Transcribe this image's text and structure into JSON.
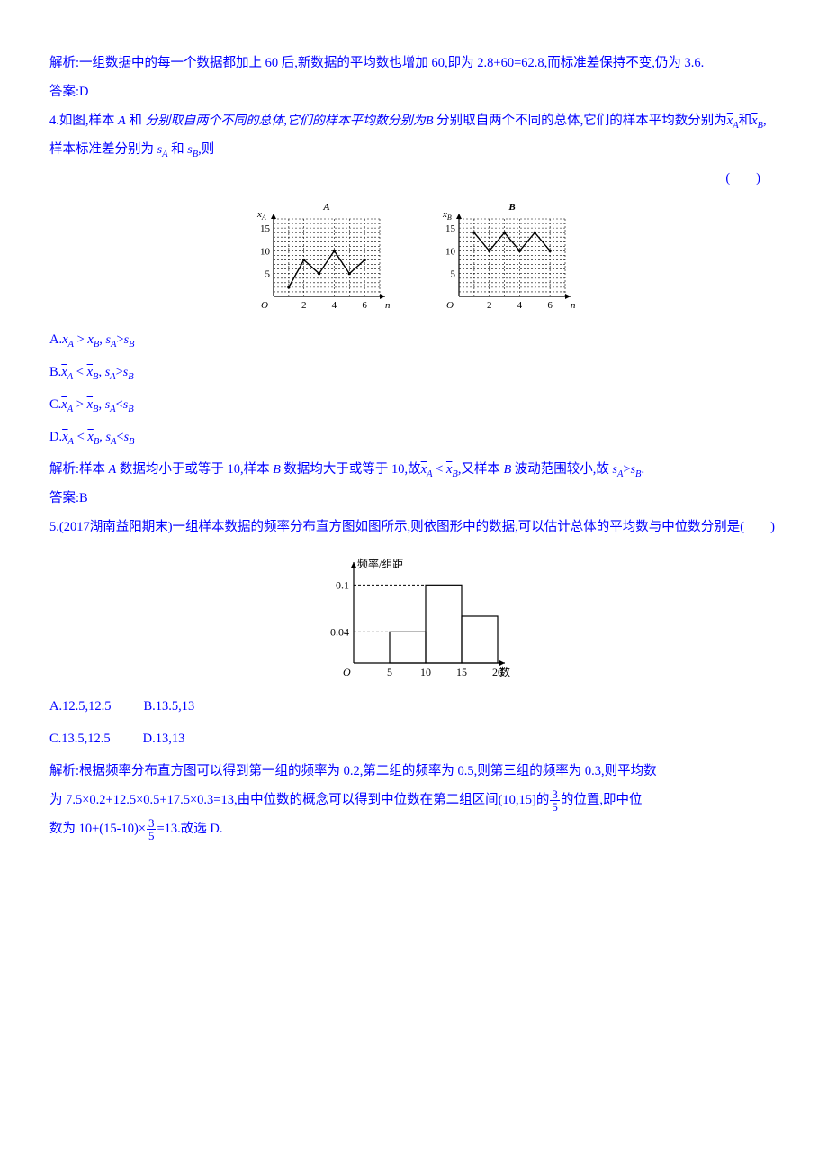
{
  "q3": {
    "analysis": "解析:一组数据中的每一个数据都加上 60 后,新数据的平均数也增加 60,即为 2.8+60=62.8,而标准差保持不变,仍为 3.6.",
    "answer": "答案:D"
  },
  "q4": {
    "stem_pre": "4.如图,样本 ",
    "sampleA": "A",
    "stem_mid1": " 和 ",
    "sampleB": "B",
    "stem_mid2": " 分别取自两个不同的总体,它们的样本平均数分别为",
    "xA": "x",
    "xA_sub": "A",
    "and_word": "和",
    "xB": "x",
    "xB_sub": "B",
    "stem_mid3": ",样本标准差分别为 ",
    "sA": "s",
    "sA_sub": "A",
    "stem_mid4": " 和 ",
    "sB": "s",
    "sB_sub": "B",
    "stem_end": ",则",
    "paren": "(　　)",
    "chartA": {
      "type": "scatter-line",
      "title": "A",
      "x_axis_label": "n",
      "y_axis_label": "xA",
      "x_ticks": [
        2,
        4,
        6
      ],
      "y_ticks": [
        5,
        10,
        15
      ],
      "values_y": [
        2,
        8,
        5,
        10,
        5,
        8
      ],
      "x_max": 7,
      "y_max": 17,
      "grid_color": "#000000",
      "line_color": "#000000",
      "font_size": 11,
      "grid_dashed": true
    },
    "chartB": {
      "type": "scatter-line",
      "title": "B",
      "x_axis_label": "n",
      "y_axis_label": "xB",
      "x_ticks": [
        2,
        4,
        6
      ],
      "y_ticks": [
        5,
        10,
        15
      ],
      "values_y": [
        14,
        10,
        14,
        10,
        14,
        10
      ],
      "x_max": 7,
      "y_max": 17,
      "grid_color": "#000000",
      "line_color": "#000000",
      "font_size": 11,
      "grid_dashed": true
    },
    "options": [
      {
        "label": "A.",
        "rel1": " > ",
        "rel2": ">"
      },
      {
        "label": "B.",
        "rel1": " < ",
        "rel2": ">"
      },
      {
        "label": "C.",
        "rel1": " > ",
        "rel2": "<"
      },
      {
        "label": "D.",
        "rel1": " < ",
        "rel2": "<"
      }
    ],
    "opt_xA": "x",
    "opt_xA_sub": "A",
    "opt_xB": "x",
    "opt_xB_sub": "B",
    "opt_sA": "s",
    "opt_sA_sub": "A",
    "opt_sB": "s",
    "opt_sB_sub": "B",
    "comma": ", ",
    "analysis_pre": "解析:样本 ",
    "analysis_mid1": " 数据均小于或等于 10,样本 ",
    "analysis_mid2": " 数据均大于或等于 10,故",
    "analysis_mid3": ",又样本 ",
    "analysis_mid4": " 波动范围较小,故 ",
    "analysis_end": ".",
    "lt": " < ",
    "gt": ">",
    "answer": "答案:B"
  },
  "q5": {
    "stem": "5.(2017湖南益阳期末)一组样本数据的频率分布直方图如图所示,则依图形中的数据,可以估计总体的平均数与中位数分别是(　　)",
    "histogram": {
      "type": "histogram",
      "x_label": "数",
      "y_label": "频率/组距",
      "x_ticks": [
        5,
        10,
        15,
        20
      ],
      "y_ticks": [
        0.04,
        0.1
      ],
      "y_tick_labels": [
        "0.04",
        "0.1"
      ],
      "bars": [
        {
          "from": 5,
          "to": 10,
          "h": 0.04
        },
        {
          "from": 10,
          "to": 15,
          "h": 0.1
        },
        {
          "from": 15,
          "to": 20,
          "h": 0.06
        }
      ],
      "origin_label": "O",
      "axis_color": "#000000",
      "line_width": 1.2,
      "font_size": 12
    },
    "optA": "A.12.5,12.5",
    "optB": "B.13.5,13",
    "optC": "C.13.5,12.5",
    "optD": "D.13,13",
    "analysis1": "解析:根据频率分布直方图可以得到第一组的频率为 0.2,第二组的频率为 0.5,则第三组的频率为 0.3,则平均数",
    "analysis2_pre": "为 7.5×0.2+12.5×0.5+17.5×0.3=13,由中位数的概念可以得到中位数在第二组区间(10,15]的",
    "analysis2_post": "的位置,即中位",
    "frac1_num": "3",
    "frac1_den": "5",
    "analysis3_pre": "数为 10+(15-10)×",
    "analysis3_post": "=13.故选 D.",
    "frac2_num": "3",
    "frac2_den": "5"
  }
}
